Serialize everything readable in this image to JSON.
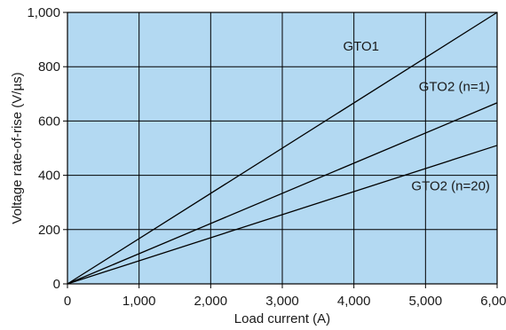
{
  "chart_data": {
    "type": "line",
    "xlabel": "Load current (A)",
    "ylabel": "Voltage rate-of-rise (V/µs)",
    "xlim": [
      0,
      6000
    ],
    "ylim": [
      0,
      1000
    ],
    "x_ticks": [
      0,
      1000,
      2000,
      3000,
      4000,
      5000,
      6000
    ],
    "x_tick_labels": [
      "0",
      "1,000",
      "2,000",
      "3,000",
      "4,000",
      "5,000",
      "6,000"
    ],
    "y_ticks": [
      0,
      200,
      400,
      600,
      800,
      1000
    ],
    "y_tick_labels": [
      "0",
      "200",
      "400",
      "600",
      "800",
      "1,000"
    ],
    "grid": true,
    "plot_background": "#b3d9f2",
    "line_color": "#000000",
    "series": [
      {
        "name": "GTO1",
        "x": [
          0,
          6000
        ],
        "y": [
          0,
          1000
        ]
      },
      {
        "name": "GTO2 (n=1)",
        "x": [
          0,
          6000
        ],
        "y": [
          0,
          667
        ]
      },
      {
        "name": "GTO2 (n=20)",
        "x": [
          0,
          6000
        ],
        "y": [
          0,
          510
        ]
      }
    ]
  }
}
